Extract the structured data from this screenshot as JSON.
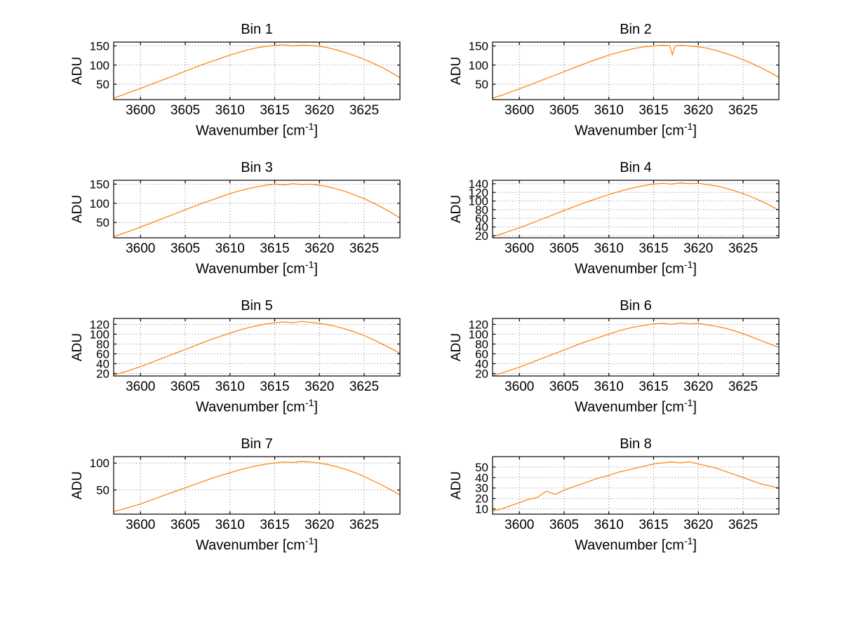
{
  "labels": {
    "ylabel": "ADU",
    "xlabel_pre": "Wavenumber [cm",
    "xlabel_sup": "-1",
    "xlabel_post": "]"
  },
  "style": {
    "line_color": "#ff7f00",
    "grid_color": "#808080",
    "axis_color": "#000000",
    "background": "#ffffff"
  },
  "chart_data": [
    {
      "type": "line",
      "title": "Bin 1",
      "xlabel": "Wavenumber [cm^-1]",
      "ylabel": "ADU",
      "xlim": [
        3597,
        3629
      ],
      "ylim": [
        10,
        160
      ],
      "xticks": [
        3600,
        3605,
        3610,
        3615,
        3620,
        3625
      ],
      "yticks": [
        50,
        100,
        150
      ],
      "x_start": 3597,
      "x_step": 1,
      "values": [
        14,
        22,
        31,
        39,
        48,
        57,
        66,
        75,
        84,
        93,
        102,
        110,
        118,
        126,
        133,
        140,
        145,
        149,
        151,
        153,
        150,
        152,
        151,
        149,
        145,
        139,
        132,
        124,
        115,
        105,
        94,
        81,
        67
      ]
    },
    {
      "type": "line",
      "title": "Bin 2",
      "xlabel": "Wavenumber [cm^-1]",
      "ylabel": "ADU",
      "xlim": [
        3597,
        3629
      ],
      "ylim": [
        10,
        160
      ],
      "xticks": [
        3600,
        3605,
        3610,
        3615,
        3620,
        3625
      ],
      "yticks": [
        50,
        100,
        150
      ],
      "x": [
        3597,
        3598,
        3599,
        3600,
        3601,
        3602,
        3603,
        3604,
        3605,
        3606,
        3607,
        3608,
        3609,
        3610,
        3611,
        3612,
        3613,
        3614,
        3615,
        3616,
        3616.8,
        3617.1,
        3617.4,
        3618,
        3619,
        3620,
        3621,
        3622,
        3623,
        3624,
        3625,
        3626,
        3627,
        3628,
        3629
      ],
      "values": [
        14,
        21,
        30,
        38,
        47,
        56,
        65,
        74,
        83,
        92,
        101,
        110,
        118,
        126,
        133,
        139,
        144,
        148,
        150,
        152,
        151,
        127,
        150,
        152,
        150,
        148,
        144,
        138,
        131,
        123,
        114,
        104,
        93,
        81,
        68
      ]
    },
    {
      "type": "line",
      "title": "Bin 3",
      "xlabel": "Wavenumber [cm^-1]",
      "ylabel": "ADU",
      "xlim": [
        3597,
        3629
      ],
      "ylim": [
        10,
        160
      ],
      "xticks": [
        3600,
        3605,
        3610,
        3615,
        3620,
        3625
      ],
      "yticks": [
        50,
        100,
        150
      ],
      "x_start": 3597,
      "x_step": 1,
      "values": [
        13,
        21,
        29,
        38,
        47,
        56,
        65,
        74,
        83,
        92,
        101,
        109,
        117,
        125,
        132,
        138,
        143,
        147,
        150,
        148,
        151,
        149,
        150,
        147,
        143,
        137,
        130,
        121,
        112,
        101,
        89,
        76,
        62
      ]
    },
    {
      "type": "line",
      "title": "Bin 4",
      "xlabel": "Wavenumber [cm^-1]",
      "ylabel": "ADU",
      "xlim": [
        3597,
        3629
      ],
      "ylim": [
        15,
        148
      ],
      "xticks": [
        3600,
        3605,
        3610,
        3615,
        3620,
        3625
      ],
      "yticks": [
        20,
        40,
        60,
        80,
        100,
        120,
        140
      ],
      "x_start": 3597,
      "x_step": 1,
      "values": [
        18,
        24,
        31,
        38,
        46,
        54,
        62,
        70,
        78,
        86,
        94,
        101,
        108,
        115,
        121,
        127,
        132,
        136,
        139,
        141,
        139,
        142,
        140,
        141,
        138,
        135,
        130,
        124,
        117,
        109,
        100,
        90,
        79
      ]
    },
    {
      "type": "line",
      "title": "Bin 5",
      "xlabel": "Wavenumber [cm^-1]",
      "ylabel": "ADU",
      "xlim": [
        3597,
        3629
      ],
      "ylim": [
        15,
        132
      ],
      "xticks": [
        3600,
        3605,
        3610,
        3615,
        3620,
        3625
      ],
      "yticks": [
        20,
        40,
        60,
        80,
        100,
        120
      ],
      "x_start": 3597,
      "x_step": 1,
      "values": [
        17,
        22,
        28,
        34,
        41,
        48,
        55,
        62,
        69,
        76,
        83,
        90,
        96,
        102,
        108,
        113,
        117,
        121,
        123,
        125,
        123,
        126,
        124,
        122,
        119,
        115,
        110,
        104,
        97,
        89,
        80,
        71,
        61
      ]
    },
    {
      "type": "line",
      "title": "Bin 6",
      "xlabel": "Wavenumber [cm^-1]",
      "ylabel": "ADU",
      "xlim": [
        3597,
        3629
      ],
      "ylim": [
        15,
        132
      ],
      "xticks": [
        3600,
        3605,
        3610,
        3615,
        3620,
        3625
      ],
      "yticks": [
        20,
        40,
        60,
        80,
        100,
        120
      ],
      "x_start": 3597,
      "x_step": 1,
      "values": [
        16,
        21,
        27,
        33,
        40,
        47,
        54,
        61,
        68,
        75,
        82,
        88,
        94,
        100,
        106,
        111,
        115,
        118,
        121,
        122,
        120,
        123,
        121,
        122,
        119,
        116,
        112,
        107,
        101,
        94,
        87,
        80,
        73
      ]
    },
    {
      "type": "line",
      "title": "Bin 7",
      "xlabel": "Wavenumber [cm^-1]",
      "ylabel": "ADU",
      "xlim": [
        3597,
        3629
      ],
      "ylim": [
        5,
        112
      ],
      "xticks": [
        3600,
        3605,
        3610,
        3615,
        3620,
        3625
      ],
      "yticks": [
        50,
        100
      ],
      "x_start": 3597,
      "x_step": 1,
      "values": [
        10,
        14,
        19,
        24,
        30,
        36,
        42,
        48,
        54,
        60,
        66,
        72,
        77,
        82,
        87,
        91,
        95,
        98,
        100,
        102,
        101,
        103,
        102,
        100,
        97,
        93,
        88,
        82,
        75,
        67,
        59,
        50,
        41
      ]
    },
    {
      "type": "line",
      "title": "Bin 8",
      "xlabel": "Wavenumber [cm^-1]",
      "ylabel": "ADU",
      "xlim": [
        3597,
        3629
      ],
      "ylim": [
        5,
        60
      ],
      "xticks": [
        3600,
        3605,
        3610,
        3615,
        3620,
        3625
      ],
      "yticks": [
        10,
        20,
        30,
        40,
        50
      ],
      "x_start": 3597,
      "x_step": 1,
      "values": [
        8,
        10,
        13,
        16,
        19,
        21,
        27,
        24,
        28,
        31,
        34,
        37,
        40,
        42,
        45,
        47,
        49,
        51,
        53,
        54,
        55,
        54,
        55,
        53,
        51,
        49,
        46,
        43,
        40,
        37,
        34,
        32,
        30
      ]
    }
  ]
}
